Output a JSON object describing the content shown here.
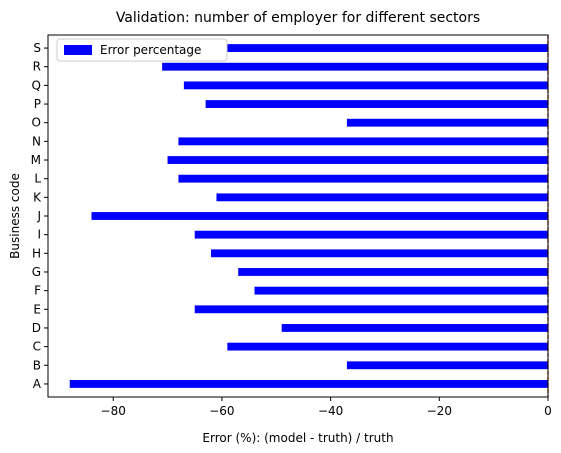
{
  "chart_data": {
    "type": "bar",
    "orientation": "horizontal",
    "title": "Validation: number of employer for different sectors",
    "xlabel": "Error (%): (model - truth) / truth",
    "ylabel": "Business code",
    "categories": [
      "A",
      "B",
      "C",
      "D",
      "E",
      "F",
      "G",
      "H",
      "I",
      "J",
      "K",
      "L",
      "M",
      "N",
      "O",
      "P",
      "Q",
      "R",
      "S"
    ],
    "series": [
      {
        "name": "Error percentage",
        "color": "#0000ff",
        "values": [
          -88,
          -37,
          -59,
          -49,
          -65,
          -54,
          -57,
          -62,
          -65,
          -84,
          -61,
          -68,
          -70,
          -68,
          -37,
          -63,
          -67,
          -71,
          -59
        ]
      }
    ],
    "xlim": [
      -92,
      0
    ],
    "xticks": [
      -80,
      -60,
      -40,
      -20,
      0
    ],
    "xtick_labels": [
      "−80",
      "−60",
      "−40",
      "−20",
      "0"
    ],
    "reference_line": {
      "x": 0,
      "color": "#c00000",
      "style": "dashed"
    },
    "legend": {
      "position": "top-left"
    },
    "grid": false
  }
}
